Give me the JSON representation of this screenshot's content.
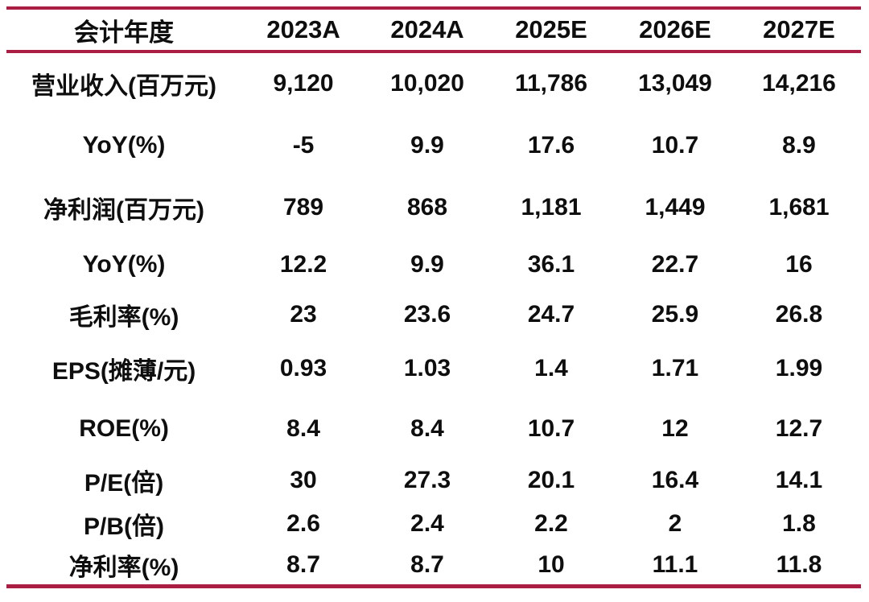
{
  "accent_color": "#AB1E43",
  "text_color": "#0e0e0e",
  "chart_data": {
    "type": "table",
    "title": "",
    "columns": [
      "会计年度",
      "2023A",
      "2024A",
      "2025E",
      "2026E",
      "2027E"
    ],
    "rows": [
      {
        "label": "营业收入(百万元)",
        "values": [
          "9,120",
          "10,020",
          "11,786",
          "13,049",
          "14,216"
        ]
      },
      {
        "label": "YoY(%)",
        "values": [
          "-5",
          "9.9",
          "17.6",
          "10.7",
          "8.9"
        ]
      },
      {
        "label": "净利润(百万元)",
        "values": [
          "789",
          "868",
          "1,181",
          "1,449",
          "1,681"
        ]
      },
      {
        "label": "YoY(%)",
        "values": [
          "12.2",
          "9.9",
          "36.1",
          "22.7",
          "16"
        ]
      },
      {
        "label": "毛利率(%)",
        "values": [
          "23",
          "23.6",
          "24.7",
          "25.9",
          "26.8"
        ]
      },
      {
        "label": "EPS(摊薄/元)",
        "values": [
          "0.93",
          "1.03",
          "1.4",
          "1.71",
          "1.99"
        ]
      },
      {
        "label": "ROE(%)",
        "values": [
          "8.4",
          "8.4",
          "10.7",
          "12",
          "12.7"
        ]
      },
      {
        "label": "P/E(倍)",
        "values": [
          "30",
          "27.3",
          "20.1",
          "16.4",
          "14.1"
        ]
      },
      {
        "label": "P/B(倍)",
        "values": [
          "2.6",
          "2.4",
          "2.2",
          "2",
          "1.8"
        ]
      },
      {
        "label": "净利率(%)",
        "values": [
          "8.7",
          "8.7",
          "10",
          "11.1",
          "11.8"
        ]
      }
    ]
  }
}
